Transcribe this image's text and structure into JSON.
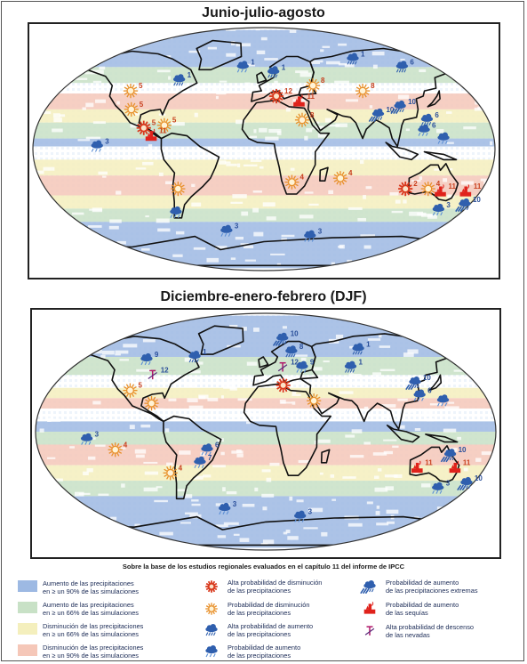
{
  "titles": {
    "jja": "Junio-julio-agosto",
    "djf": "Diciembre-enero-febrero (DJF)"
  },
  "caption": "Sobre la base de los estudios regionales evaluados en el capítulo 11 del informe de IPCC",
  "colors": {
    "increase_90": "#9db9e3",
    "increase_66": "#c8e1c6",
    "decrease_66": "#f4efbd",
    "decrease_90": "#f5c7b8",
    "ocean_outline": "#111111",
    "sun_strong": "#d93a1e",
    "sun_weak": "#e8902a",
    "rain": "#2f5fae",
    "drought": "#e0221b",
    "snow": "#b0186a"
  },
  "legend": {
    "swatches": [
      {
        "text": "Aumento de las precipitaciones\nen ≥ un 90% de las simulaciones",
        "color": "#9db9e3"
      },
      {
        "text": "Aumento de las precipitaciones\nen ≥ un 66% de las simulaciones",
        "color": "#c8e1c6"
      },
      {
        "text": "Disminución de las precipitaciones\nen ≥ un 66% de las simulaciones",
        "color": "#f4efbd"
      },
      {
        "text": "Disminución de las precipitaciones\nen ≥ un 90% de las simulaciones",
        "color": "#f5c7b8"
      }
    ],
    "symbols_mid": [
      {
        "text": "Alta probabilidad de disminución\nde las precipitaciones",
        "icon": "sun-strong-icon"
      },
      {
        "text": "Probabilidad de disminución\nde las precipitaciones",
        "icon": "sun-weak-icon"
      },
      {
        "text": "Alta probabilidad de aumento\nde las precipitaciones",
        "icon": "rain-cloud-strong-icon"
      },
      {
        "text": "Probabilidad de aumento\nde las precipitaciones",
        "icon": "rain-cloud-weak-icon"
      }
    ],
    "symbols_right": [
      {
        "text": "Probabilidad de aumento\nde las precipitaciones extremas",
        "icon": "extreme-rain-icon"
      },
      {
        "text": "Probabilidad de aumento\nde las sequías",
        "icon": "drought-icon"
      },
      {
        "text": "Alta probabilidad de descenso\nde las nevadas",
        "icon": "snow-decrease-icon"
      }
    ]
  },
  "maps": {
    "jja": {
      "markers": [
        {
          "type": "rain-weak",
          "label": "1",
          "lon": -18,
          "lat": 62
        },
        {
          "type": "rain-strong",
          "label": "1",
          "lon": 8,
          "lat": 58
        },
        {
          "type": "rain-strong",
          "label": "1",
          "lon": -70,
          "lat": 52
        },
        {
          "type": "rain-strong",
          "label": "6",
          "lon": 118,
          "lat": 62
        },
        {
          "type": "rain-strong",
          "label": "1",
          "lon": 78,
          "lat": 68
        },
        {
          "type": "sun-weak",
          "label": "5",
          "lon": -108,
          "lat": 44
        },
        {
          "type": "sun-weak",
          "label": "5",
          "lon": -105,
          "lat": 30
        },
        {
          "type": "sun-strong",
          "label": "12",
          "lon": 10,
          "lat": 40
        },
        {
          "type": "sun-weak",
          "label": "8",
          "lon": 40,
          "lat": 48
        },
        {
          "type": "sun-weak",
          "label": "8",
          "lon": 80,
          "lat": 44
        },
        {
          "type": "drought",
          "label": "11",
          "lon": 28,
          "lat": 36
        },
        {
          "type": "sun-weak",
          "label": "8",
          "lon": 30,
          "lat": 22
        },
        {
          "type": "rain-extreme",
          "label": "10",
          "lon": 108,
          "lat": 32
        },
        {
          "type": "rain-extreme",
          "label": "10",
          "lon": 90,
          "lat": 26
        },
        {
          "type": "sun-weak",
          "label": "5",
          "lon": -78,
          "lat": 18
        },
        {
          "type": "sun-strong",
          "label": "5",
          "lon": -94,
          "lat": 16
        },
        {
          "type": "drought",
          "label": "11",
          "lon": -88,
          "lat": 10
        },
        {
          "type": "rain-weak",
          "label": "6",
          "lon": 125,
          "lat": 14
        },
        {
          "type": "rain-weak",
          "label": "",
          "lon": 140,
          "lat": 8
        },
        {
          "type": "rain-strong",
          "label": "6",
          "lon": 128,
          "lat": 22
        },
        {
          "type": "rain-weak",
          "label": "3",
          "lon": -130,
          "lat": 2
        },
        {
          "type": "sun-weak",
          "label": "4",
          "lon": 22,
          "lat": -25
        },
        {
          "type": "sun-weak",
          "label": "4",
          "lon": 60,
          "lat": -22
        },
        {
          "type": "sun-strong",
          "label": "2",
          "lon": 112,
          "lat": -30
        },
        {
          "type": "sun-weak",
          "label": "4",
          "lon": 130,
          "lat": -30
        },
        {
          "type": "drought",
          "label": "11",
          "lon": 140,
          "lat": -32
        },
        {
          "type": "drought",
          "label": "11",
          "lon": 160,
          "lat": -32
        },
        {
          "type": "rain-extreme",
          "label": "10",
          "lon": 162,
          "lat": -42
        },
        {
          "type": "rain-weak",
          "label": "3",
          "lon": 142,
          "lat": -46
        },
        {
          "type": "sun-weak",
          "label": "",
          "lon": -68,
          "lat": -30
        },
        {
          "type": "rain-weak",
          "label": "",
          "lon": -72,
          "lat": -48
        },
        {
          "type": "rain-weak",
          "label": "3",
          "lon": -32,
          "lat": -62
        },
        {
          "type": "rain-weak",
          "label": "3",
          "lon": 40,
          "lat": -66
        }
      ]
    },
    "djf": {
      "markers": [
        {
          "type": "rain-extreme",
          "label": "10",
          "lon": 15,
          "lat": 72
        },
        {
          "type": "rain-strong",
          "label": "8",
          "lon": 22,
          "lat": 62
        },
        {
          "type": "rain-strong",
          "label": "1",
          "lon": 80,
          "lat": 64
        },
        {
          "type": "rain-strong",
          "label": "1",
          "lon": 70,
          "lat": 50
        },
        {
          "type": "rain-strong",
          "label": "1",
          "lon": -60,
          "lat": 58
        },
        {
          "type": "rain-weak",
          "label": "9",
          "lon": -100,
          "lat": 56
        },
        {
          "type": "snow",
          "label": "12",
          "lon": -92,
          "lat": 44
        },
        {
          "type": "snow",
          "label": "12",
          "lon": 14,
          "lat": 50
        },
        {
          "type": "rain-weak",
          "label": "9",
          "lon": 30,
          "lat": 50
        },
        {
          "type": "sun-strong",
          "label": "",
          "lon": 14,
          "lat": 36
        },
        {
          "type": "sun-weak",
          "label": "5",
          "lon": -108,
          "lat": 32
        },
        {
          "type": "sun-weak",
          "label": "",
          "lon": -90,
          "lat": 22
        },
        {
          "type": "sun-weak",
          "label": "",
          "lon": 38,
          "lat": 24
        },
        {
          "type": "rain-extreme",
          "label": "10",
          "lon": 120,
          "lat": 38
        },
        {
          "type": "rain-weak",
          "label": "6",
          "lon": 122,
          "lat": 28
        },
        {
          "type": "rain-weak",
          "label": "",
          "lon": 140,
          "lat": 24
        },
        {
          "type": "rain-weak",
          "label": "3",
          "lon": -140,
          "lat": -6
        },
        {
          "type": "sun-weak",
          "label": "4",
          "lon": -118,
          "lat": -14
        },
        {
          "type": "sun-weak",
          "label": "4",
          "lon": -76,
          "lat": -32
        },
        {
          "type": "rain-weak",
          "label": "7",
          "lon": -52,
          "lat": -24
        },
        {
          "type": "rain-weak",
          "label": "6",
          "lon": -46,
          "lat": -14
        },
        {
          "type": "drought",
          "label": "11",
          "lon": 120,
          "lat": -28
        },
        {
          "type": "drought",
          "label": "11",
          "lon": 150,
          "lat": -28
        },
        {
          "type": "rain-extreme",
          "label": "10",
          "lon": 145,
          "lat": -18
        },
        {
          "type": "rain-extreme",
          "label": "10",
          "lon": 162,
          "lat": -40
        },
        {
          "type": "rain-weak",
          "label": "3",
          "lon": 140,
          "lat": -44
        },
        {
          "type": "rain-weak",
          "label": "3",
          "lon": -35,
          "lat": -60
        },
        {
          "type": "rain-weak",
          "label": "3",
          "lon": 30,
          "lat": -66
        }
      ]
    }
  }
}
